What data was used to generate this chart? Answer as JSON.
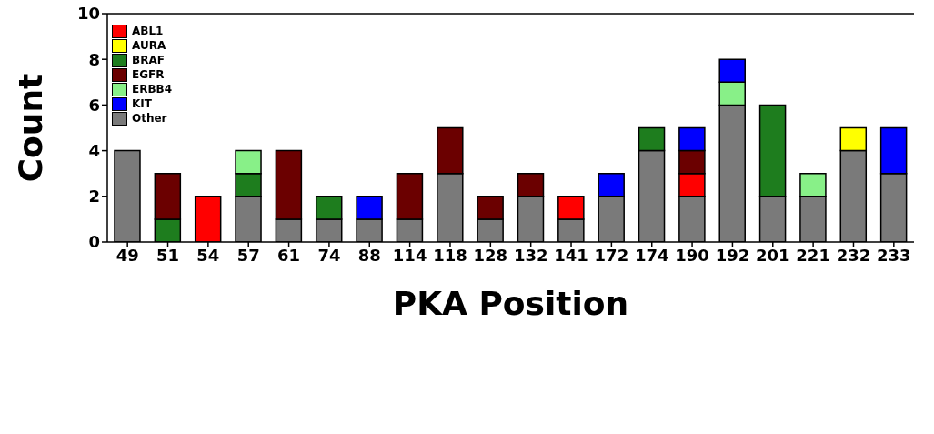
{
  "chart_data": {
    "type": "bar",
    "xlabel": "PKA Position",
    "ylabel": "Count",
    "stacked": true,
    "legend": "top left",
    "grid": false,
    "categories": [
      "49",
      "51",
      "54",
      "57",
      "61",
      "74",
      "88",
      "114",
      "118",
      "128",
      "132",
      "141",
      "172",
      "174",
      "190",
      "192",
      "201",
      "221",
      "232",
      "233"
    ],
    "ylim": [
      0,
      10
    ],
    "yticks": [
      0,
      2,
      4,
      6,
      8,
      10
    ],
    "series": [
      {
        "name": "Other",
        "color": "#7a7a7a",
        "values": [
          4,
          null,
          null,
          2,
          1,
          1,
          1,
          1,
          3,
          1,
          2,
          1,
          2,
          4,
          2,
          6,
          2,
          2,
          4,
          3
        ]
      },
      {
        "name": "ABL1",
        "color": "#ff0000",
        "values": [
          null,
          null,
          2,
          null,
          null,
          null,
          null,
          null,
          null,
          null,
          null,
          1,
          null,
          null,
          1,
          null,
          null,
          null,
          null,
          null
        ]
      },
      {
        "name": "AURA",
        "color": "#ffff00",
        "values": [
          null,
          null,
          null,
          null,
          null,
          null,
          null,
          null,
          null,
          null,
          null,
          null,
          null,
          null,
          null,
          null,
          null,
          null,
          1,
          null
        ]
      },
      {
        "name": "BRAF",
        "color": "#1e7d1e",
        "values": [
          null,
          1,
          null,
          1,
          null,
          1,
          null,
          null,
          null,
          null,
          null,
          null,
          null,
          1,
          null,
          null,
          4,
          null,
          null,
          null
        ]
      },
      {
        "name": "EGFR",
        "color": "#6b0000",
        "values": [
          null,
          2,
          null,
          null,
          3,
          null,
          null,
          2,
          2,
          1,
          1,
          null,
          null,
          null,
          1,
          null,
          null,
          null,
          null,
          null
        ]
      },
      {
        "name": "ERBB4",
        "color": "#88f088",
        "values": [
          null,
          null,
          null,
          1,
          null,
          null,
          null,
          null,
          null,
          null,
          null,
          null,
          null,
          null,
          null,
          1,
          null,
          1,
          null,
          null
        ]
      },
      {
        "name": "KIT",
        "color": "#0000ff",
        "values": [
          null,
          null,
          null,
          null,
          null,
          null,
          1,
          null,
          null,
          null,
          null,
          null,
          1,
          null,
          1,
          1,
          null,
          null,
          null,
          2
        ]
      }
    ]
  }
}
